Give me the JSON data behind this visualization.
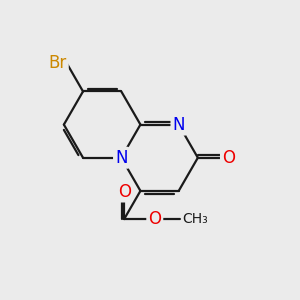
{
  "bg_color": "#ebebeb",
  "bond_color": "#1a1a1a",
  "bond_width": 1.6,
  "atom_colors": {
    "N": "#0000ee",
    "O": "#ee0000",
    "Br": "#cc8800",
    "C": "#1a1a1a"
  },
  "font_size_atom": 12,
  "font_size_methyl": 10
}
